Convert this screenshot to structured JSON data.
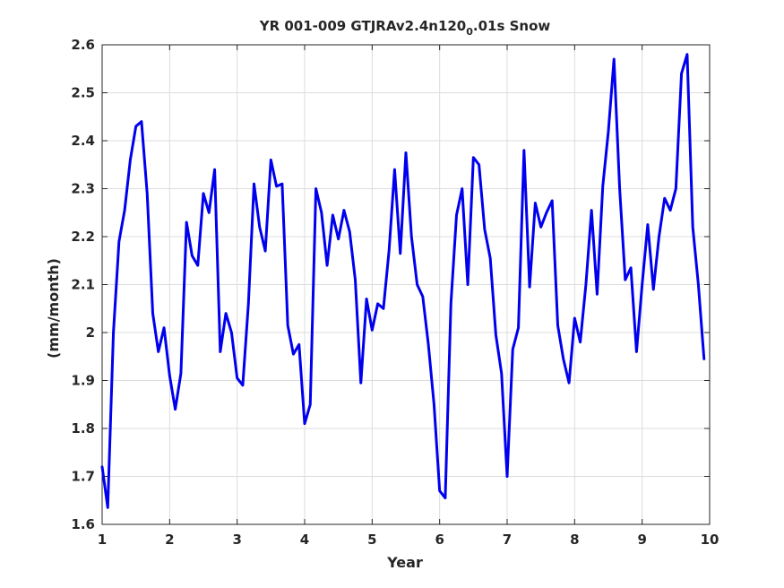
{
  "chart_data": {
    "type": "line",
    "title": {
      "main": "YR 001-009 GTJRAv2.4n120",
      "subscript": "0",
      "suffix": ".01s Snow"
    },
    "xlabel": "Year",
    "ylabel": "(mm/month)",
    "xlim": [
      1,
      10
    ],
    "ylim": [
      1.6,
      2.6
    ],
    "xticks": [
      1,
      2,
      3,
      4,
      5,
      6,
      7,
      8,
      9,
      10
    ],
    "xtick_labels": [
      "1",
      "2",
      "3",
      "4",
      "5",
      "6",
      "7",
      "8",
      "9",
      "10"
    ],
    "yticks": [
      1.6,
      1.7,
      1.8,
      1.9,
      2.0,
      2.1,
      2.2,
      2.3,
      2.4,
      2.5,
      2.6
    ],
    "ytick_labels": [
      "1.6",
      "1.7",
      "1.8",
      "1.9",
      "2",
      "2.1",
      "2.2",
      "2.3",
      "2.4",
      "2.5",
      "2.6"
    ],
    "grid": true,
    "line_color": "#0000ee",
    "series": [
      {
        "x": [
          1.0,
          1.083,
          1.167,
          1.25,
          1.333,
          1.417,
          1.5,
          1.583,
          1.667,
          1.75,
          1.833,
          1.917,
          2.0,
          2.083,
          2.167,
          2.25,
          2.333,
          2.417,
          2.5,
          2.583,
          2.667,
          2.75,
          2.833,
          2.917,
          3.0,
          3.083,
          3.167,
          3.25,
          3.333,
          3.417,
          3.5,
          3.583,
          3.667,
          3.75,
          3.833,
          3.917,
          4.0,
          4.083,
          4.167,
          4.25,
          4.333,
          4.417,
          4.5,
          4.583,
          4.667,
          4.75,
          4.833,
          4.917,
          5.0,
          5.083,
          5.167,
          5.25,
          5.333,
          5.417,
          5.5,
          5.583,
          5.667,
          5.75,
          5.833,
          5.917,
          6.0,
          6.083,
          6.167,
          6.25,
          6.333,
          6.417,
          6.5,
          6.583,
          6.667,
          6.75,
          6.833,
          6.917,
          7.0,
          7.083,
          7.167,
          7.25,
          7.333,
          7.417,
          7.5,
          7.583,
          7.667,
          7.75,
          7.833,
          7.917,
          8.0,
          8.083,
          8.167,
          8.25,
          8.333,
          8.417,
          8.5,
          8.583,
          8.667,
          8.75,
          8.833,
          8.917,
          9.0,
          9.083,
          9.167,
          9.25,
          9.333,
          9.417,
          9.5,
          9.583,
          9.667,
          9.75,
          9.833,
          9.917
        ],
        "y": [
          1.72,
          1.635,
          2.0,
          2.19,
          2.255,
          2.36,
          2.43,
          2.44,
          2.29,
          2.04,
          1.96,
          2.01,
          1.91,
          1.84,
          1.915,
          2.23,
          2.16,
          2.14,
          2.29,
          2.25,
          2.34,
          1.96,
          2.04,
          2.0,
          1.905,
          1.89,
          2.06,
          2.31,
          2.22,
          2.17,
          2.36,
          2.305,
          2.31,
          2.015,
          1.955,
          1.975,
          1.81,
          1.85,
          2.3,
          2.25,
          2.14,
          2.245,
          2.195,
          2.255,
          2.21,
          2.11,
          1.895,
          2.07,
          2.005,
          2.06,
          2.05,
          2.17,
          2.34,
          2.165,
          2.375,
          2.2,
          2.1,
          2.075,
          1.975,
          1.85,
          1.67,
          1.655,
          2.06,
          2.245,
          2.3,
          2.1,
          2.365,
          2.35,
          2.215,
          2.155,
          1.995,
          1.915,
          1.7,
          1.965,
          2.01,
          2.38,
          2.095,
          2.27,
          2.22,
          2.25,
          2.275,
          2.015,
          1.945,
          1.895,
          2.03,
          1.98,
          2.1,
          2.255,
          2.08,
          2.305,
          2.42,
          2.57,
          2.3,
          2.11,
          2.135,
          1.96,
          2.1,
          2.225,
          2.09,
          2.2,
          2.28,
          2.255,
          2.3,
          2.54,
          2.58,
          2.22,
          2.1,
          1.945
        ]
      }
    ]
  }
}
